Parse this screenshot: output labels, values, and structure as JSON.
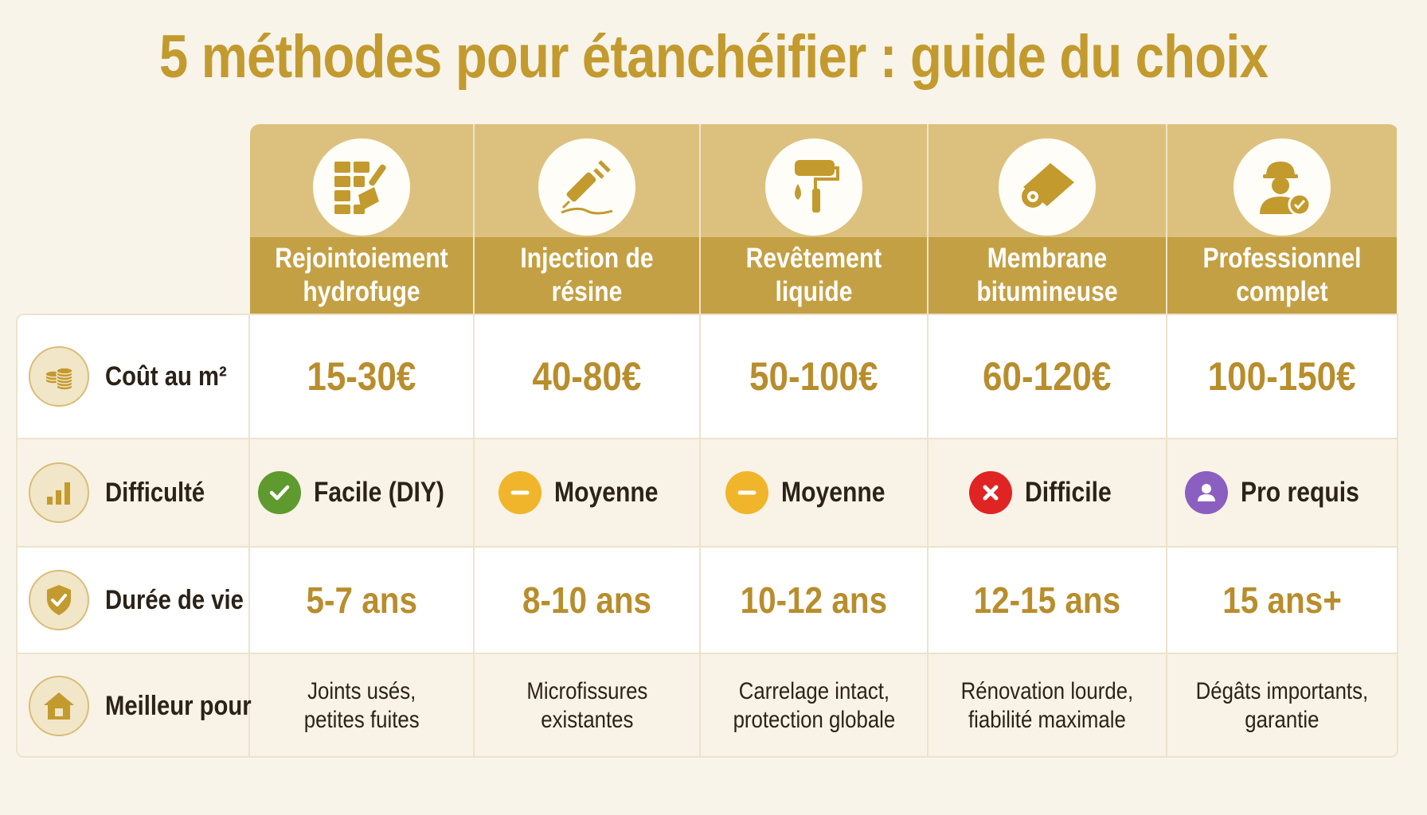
{
  "title": "5 méthodes pour étanchéifier : guide du choix",
  "methods": [
    {
      "label": "Rejointoiement\nhydrofuge",
      "icon": "tile-trowel-icon"
    },
    {
      "label": "Injection de\nrésine",
      "icon": "syringe-icon"
    },
    {
      "label": "Revêtement\nliquide",
      "icon": "paint-roller-icon"
    },
    {
      "label": "Membrane\nbitumineuse",
      "icon": "membrane-roll-icon"
    },
    {
      "label": "Professionnel\ncomplet",
      "icon": "professional-worker-icon"
    }
  ],
  "rows": {
    "cost": {
      "label": "Coût au m²",
      "icon": "coins-icon",
      "values": [
        "15-30€",
        "40-80€",
        "50-100€",
        "60-120€",
        "100-150€"
      ]
    },
    "difficulty": {
      "label": "Difficulté",
      "icon": "bar-chart-icon",
      "values": [
        {
          "text": "Facile (DIY)",
          "icon": "check-icon",
          "color": "#5e9a2e"
        },
        {
          "text": "Moyenne",
          "icon": "minus-icon",
          "color": "#f0b52a"
        },
        {
          "text": "Moyenne",
          "icon": "minus-icon",
          "color": "#f0b52a"
        },
        {
          "text": "Difficile",
          "icon": "cross-icon",
          "color": "#e02424"
        },
        {
          "text": "Pro requis",
          "icon": "user-icon",
          "color": "#8a5fc0"
        }
      ]
    },
    "lifespan": {
      "label": "Durée de vie",
      "icon": "shield-check-icon",
      "values": [
        "5-7 ans",
        "8-10 ans",
        "10-12 ans",
        "12-15 ans",
        "15 ans+"
      ]
    },
    "best_for": {
      "label": "Meilleur pour",
      "icon": "house-icon",
      "values": [
        "Joints usés,\npetites fuites",
        "Microfissures\nexistantes",
        "Carrelage intact,\nprotection globale",
        "Rénovation lourde,\nfiabilité maximale",
        "Dégâts importants,\ngarantie"
      ]
    }
  },
  "colors": {
    "accent": "#c39a2e",
    "header_top": "#dcc17e",
    "header_bottom": "#c4a044",
    "value": "#b88d2c"
  }
}
